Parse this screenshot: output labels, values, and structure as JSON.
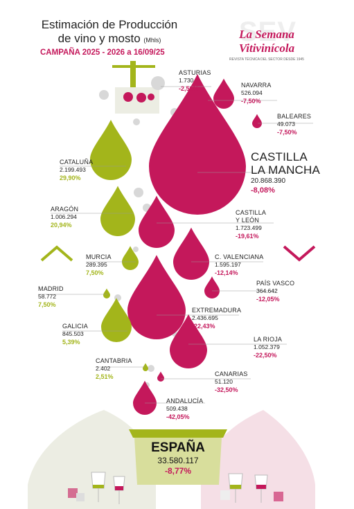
{
  "header": {
    "title_line1": "Estimación de Producción",
    "title_line2": "de vino y mosto",
    "unit": "(Mhls)",
    "campaign": "CAMPAÑA 2025 - 2026 a 16/09/25"
  },
  "brand": {
    "watermark": "SEV",
    "name": "La Semana Vitivinícola",
    "tagline": "REVISTA TÉCNICA DEL SECTOR DESDE 1945"
  },
  "colors": {
    "red": "#c4185b",
    "green": "#a3b51b",
    "gray": "#d8d8d8"
  },
  "chart_data": {
    "type": "table",
    "columns": [
      "Región",
      "Producción",
      "Variación"
    ],
    "regions": [
      {
        "name": "ASTURIAS",
        "value": "1.730",
        "change": "-2,50%",
        "trend": "down"
      },
      {
        "name": "NAVARRA",
        "value": "526.094",
        "change": "-7,50%",
        "trend": "down"
      },
      {
        "name": "BALEARES",
        "value": "49.073",
        "change": "-7,50%",
        "trend": "down"
      },
      {
        "name": "CATALUÑA",
        "value": "2.199.493",
        "change": "29,90%",
        "trend": "up"
      },
      {
        "name": "CASTILLA",
        "name2": "LA MANCHA",
        "value": "20.868.390",
        "change": "-8,08%",
        "trend": "down"
      },
      {
        "name": "ARAGÓN",
        "value": "1.006.294",
        "change": "20,94%",
        "trend": "up"
      },
      {
        "name": "CASTILLA",
        "name2": "Y LEÓN",
        "value": "1.723.499",
        "change": "-19,61%",
        "trend": "down"
      },
      {
        "name": "MURCIA",
        "value": "289.395",
        "change": "7,50%",
        "trend": "up"
      },
      {
        "name": "C. VALENCIANA",
        "value": "1.595.197",
        "change": "-12,14%",
        "trend": "down"
      },
      {
        "name": "MADRID",
        "value": "58.772",
        "change": "7,50%",
        "trend": "up"
      },
      {
        "name": "PAÍS VASCO",
        "value": "364.642",
        "change": "-12,05%",
        "trend": "down"
      },
      {
        "name": "EXTREMADURA",
        "value": "2.436.695",
        "change": "-22,43%",
        "trend": "down"
      },
      {
        "name": "GALICIA",
        "value": "845.503",
        "change": "5,39%",
        "trend": "up"
      },
      {
        "name": "LA RIOJA",
        "value": "1.052.379",
        "change": "-22,50%",
        "trend": "down"
      },
      {
        "name": "CANTABRIA",
        "value": "2.402",
        "change": "2,51%",
        "trend": "up"
      },
      {
        "name": "CANARIAS",
        "value": "51.120",
        "change": "-32,50%",
        "trend": "down"
      },
      {
        "name": "ANDALUCÍA",
        "value": "509.438",
        "change": "-42,05%",
        "trend": "down"
      }
    ],
    "total": {
      "name": "ESPAÑA",
      "value": "33.580.117",
      "change": "-8,77%",
      "trend": "down"
    }
  }
}
